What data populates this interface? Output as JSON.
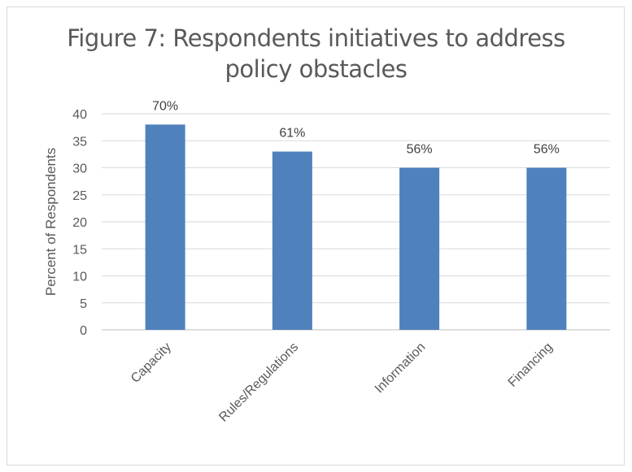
{
  "chart_data": {
    "type": "bar",
    "title_lines": [
      "Figure 7: Respondents initiatives to address",
      "policy obstacles"
    ],
    "title": "Figure 7: Respondents initiatives to address policy obstacles",
    "ylabel": "Percent of Respondents",
    "xlabel": "",
    "categories": [
      "Capacity",
      "Rules/Regulations",
      "Information",
      "Financing"
    ],
    "values": [
      38,
      33,
      30,
      30
    ],
    "data_labels": [
      "70%",
      "61%",
      "56%",
      "56%"
    ],
    "ylim": [
      0,
      40
    ],
    "yticks": [
      0,
      5,
      10,
      15,
      20,
      25,
      30,
      35,
      40
    ],
    "grid": true,
    "bar_color": "#4f81bd"
  }
}
